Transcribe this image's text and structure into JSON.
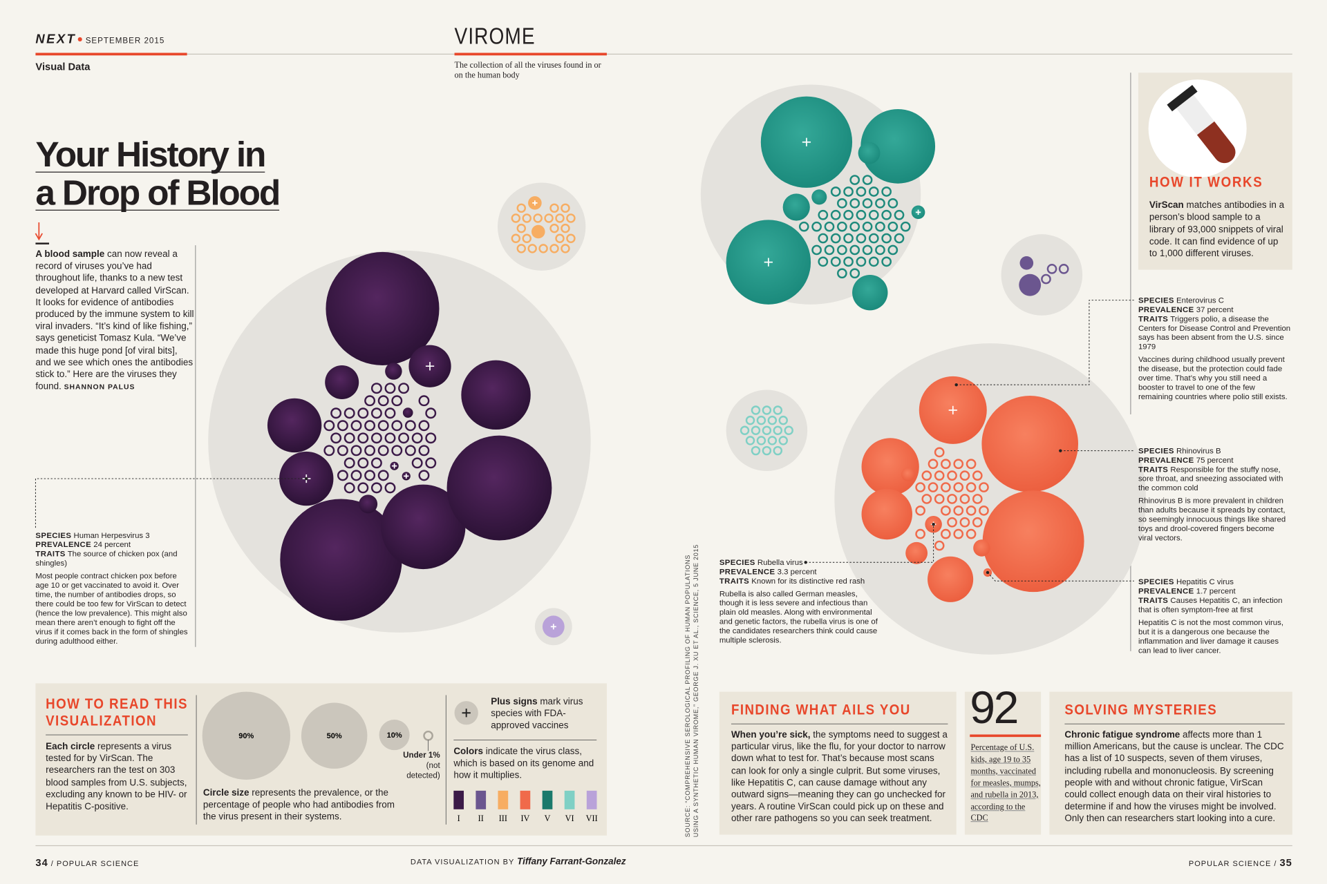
{
  "header": {
    "brand": "NEXT",
    "date": "SEPTEMBER 2015",
    "section": "Visual Data",
    "topic": "VIROME",
    "topic_description": "The collection of all the viruses found in or on the human body"
  },
  "title": [
    "Your History in",
    "a Drop of Blood"
  ],
  "intro": {
    "lead": "A blood sample",
    "body": "can now reveal a record of viruses you’ve had throughout life, thanks to a new test developed at Harvard called VirScan. It looks for evidence of antibodies produced by the immune system to kill viral invaders. “It’s kind of like fishing,” says geneticist Tomasz Kula. “We’ve made this huge pond [of viral bits], and we see which ones the antibodies stick to.” Here are the viruses they found.",
    "byline": "SHANNON PALUS"
  },
  "callout_labels": {
    "species": "SPECIES",
    "prevalence": "PREVALENCE",
    "traits": "TRAITS"
  },
  "callouts": [
    {
      "species": "Human Herpesvirus 3",
      "prevalence": "24 percent",
      "traits": "The source of chicken pox (and shingles)",
      "note": "Most people contract chicken pox before age 10 or get vaccinated to avoid it. Over time, the number of antibodies drops, so there could be too few for VirScan to detect (hence the low prevalence). This might also mean there aren’t enough to fight off the virus if it comes back in the form of shingles during adulthood either."
    },
    {
      "species": "Enterovirus C",
      "prevalence": "37 percent",
      "traits": "Triggers polio, a disease the Centers for Disease Control and Prevention says has been absent from the U.S. since 1979",
      "note": "Vaccines during childhood usually prevent the disease, but the protection could fade over time. That’s why you still need a booster to travel to one of the few remaining countries where polio still exists."
    },
    {
      "species": "Rhinovirus B",
      "prevalence": "75 percent",
      "traits": "Responsible for the stuffy nose, sore throat, and sneezing associated with the common cold",
      "note": "Rhinovirus B is more prevalent in children than adults because it spreads by contact, so seemingly innocuous things like shared toys and drool-covered fingers become viral vectors."
    },
    {
      "species": "Hepatitis C virus",
      "prevalence": "1.7 percent",
      "traits": "Causes Hepatitis C, an infection that is often symptom-free at first",
      "note": "Hepatitis C is not the most common virus, but it is a dangerous one because the inflammation and liver damage it causes can lead to liver cancer."
    },
    {
      "species": "Rubella virus",
      "prevalence": "3.3 percent",
      "traits": "Known for its distinctive red rash",
      "note": "Rubella is also called German measles, though it is less severe and infectious than plain old measles. Along with environmental and genetic factors, the rubella virus is one of the candidates researchers think could cause multiple sclerosis."
    }
  ],
  "how_it_works": {
    "title": "HOW IT WORKS",
    "lead": "VirScan",
    "body": "matches antibodies in a person’s blood sample to a library of 93,000 snippets of viral code. It can find evidence of up to 1,000 different viruses."
  },
  "how_to_read": {
    "title": "HOW TO READ THIS VISUALIZATION",
    "each_circle": {
      "lead": "Each circle",
      "body": "represents a virus tested for by VirScan. The researchers ran the test on 303 blood samples from U.S. subjects, excluding any known to be HIV- or Hepatitis C-positive."
    },
    "circle_size": {
      "lead": "Circle size",
      "body": "represents the prevalence, or the percentage of people who had antibodies from the virus present in their systems."
    },
    "legend": [
      "90%",
      "50%",
      "10%"
    ],
    "under": {
      "lead": "Under 1%",
      "body": "(not detected)"
    },
    "plus": {
      "lead": "Plus signs",
      "body": "mark virus species with FDA-approved vaccines"
    },
    "colors": {
      "lead": "Colors",
      "body": "indicate the virus class, which is based on its genome and how it multiplies."
    },
    "classes": [
      {
        "label": "I",
        "color": "#3b1a48"
      },
      {
        "label": "II",
        "color": "#6b568f"
      },
      {
        "label": "III",
        "color": "#f7ad62"
      },
      {
        "label": "IV",
        "color": "#f06a4a"
      },
      {
        "label": "V",
        "color": "#1a7a6c"
      },
      {
        "label": "VI",
        "color": "#7fd0c5"
      },
      {
        "label": "VII",
        "color": "#b9a2d9"
      }
    ]
  },
  "source": "SOURCE: “COMPREHENSIVE SEROLOGICAL PROFILING OF HUMAN POPULATIONS USING A SYNTHETIC HUMAN VIROME,” GEORGE J. XU ET AL., SCIENCE, 5 JUNE 2015",
  "finding": {
    "title": "FINDING WHAT AILS YOU",
    "lead": "When you’re sick,",
    "body": "the symptoms need to suggest a particular virus, like the flu, for your doctor to narrow down what to test for. That’s because most scans can look for only a single culprit. But some viruses, like Hepatitis C, can cause damage without any outward signs—meaning they can go unchecked for years. A routine VirScan could pick up on these and other rare pathogens so you can seek treatment."
  },
  "stat": {
    "number": "92",
    "text": "Percentage of U.S. kids, age 19 to 35 months, vaccinated for measles, mumps, and rubella in 2013, according to the CDC"
  },
  "solving": {
    "title": "SOLVING MYSTERIES",
    "lead": "Chronic fatigue syndrome",
    "body": "affects more than 1 million Americans, but the cause is unclear. The CDC has a list of 10 suspects, seven of them viruses, including rubella and mononucleosis. By screening people with and without chronic fatigue, VirScan could collect enough data on their viral histories to determine if and how the viruses might be involved. Only then can researchers start looking into a cure."
  },
  "footer": {
    "left_page": "34",
    "left_pub": "/ POPULAR SCIENCE",
    "credit_label": "DATA VISUALIZATION BY",
    "credit_name": "Tiffany Farrant-Gonzalez",
    "right_pub": "POPULAR SCIENCE /",
    "right_page": "35"
  }
}
